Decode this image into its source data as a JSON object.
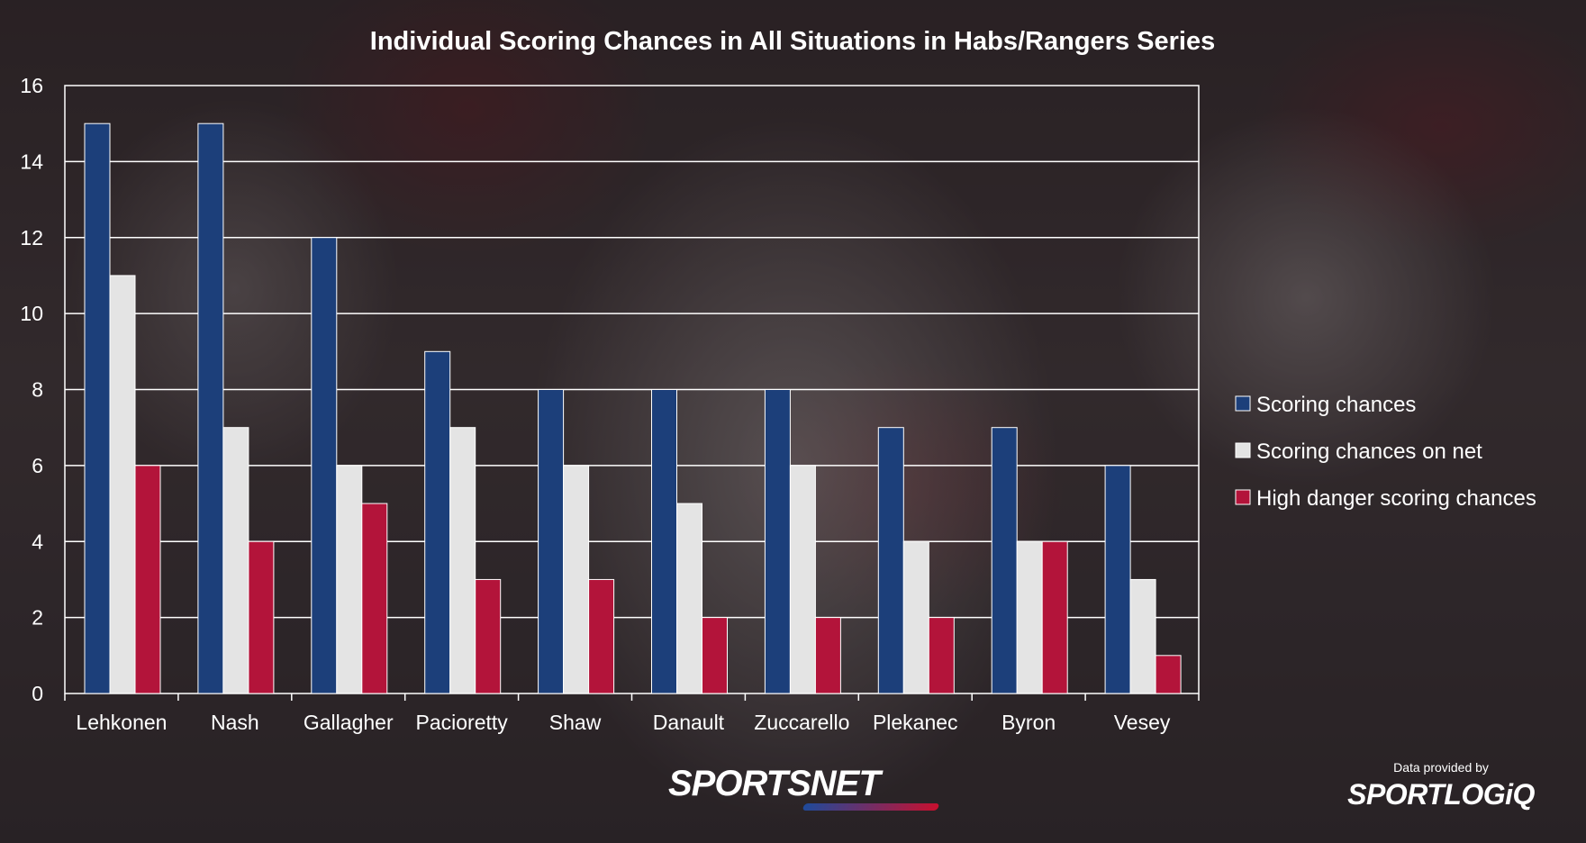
{
  "chart_data": {
    "type": "bar",
    "title": "Individual Scoring Chances in All Situations in Habs/Rangers Series",
    "xlabel": "",
    "ylabel": "",
    "ylim": [
      0,
      16
    ],
    "yticks": [
      0,
      2,
      4,
      6,
      8,
      10,
      12,
      14,
      16
    ],
    "grid": true,
    "legend_position": "right",
    "categories": [
      "Lehkonen",
      "Nash",
      "Gallagher",
      "Pacioretty",
      "Shaw",
      "Danault",
      "Zuccarello",
      "Plekanec",
      "Byron",
      "Vesey"
    ],
    "series": [
      {
        "name": "Scoring chances",
        "color": "#1c3f7a",
        "values": [
          15,
          15,
          12,
          9,
          8,
          8,
          8,
          7,
          7,
          6
        ]
      },
      {
        "name": "Scoring chances on net",
        "color": "#e4e4e4",
        "values": [
          11,
          7,
          6,
          7,
          6,
          5,
          6,
          4,
          4,
          3
        ]
      },
      {
        "name": "High danger scoring chances",
        "color": "#b3143a",
        "values": [
          6,
          4,
          5,
          3,
          3,
          2,
          2,
          2,
          4,
          1
        ]
      }
    ]
  },
  "branding": {
    "sportsnet_logo": "SPORTSNET",
    "data_provided_by": "Data provided by",
    "sportlogiq_logo": "SPORTLOGiQ"
  }
}
